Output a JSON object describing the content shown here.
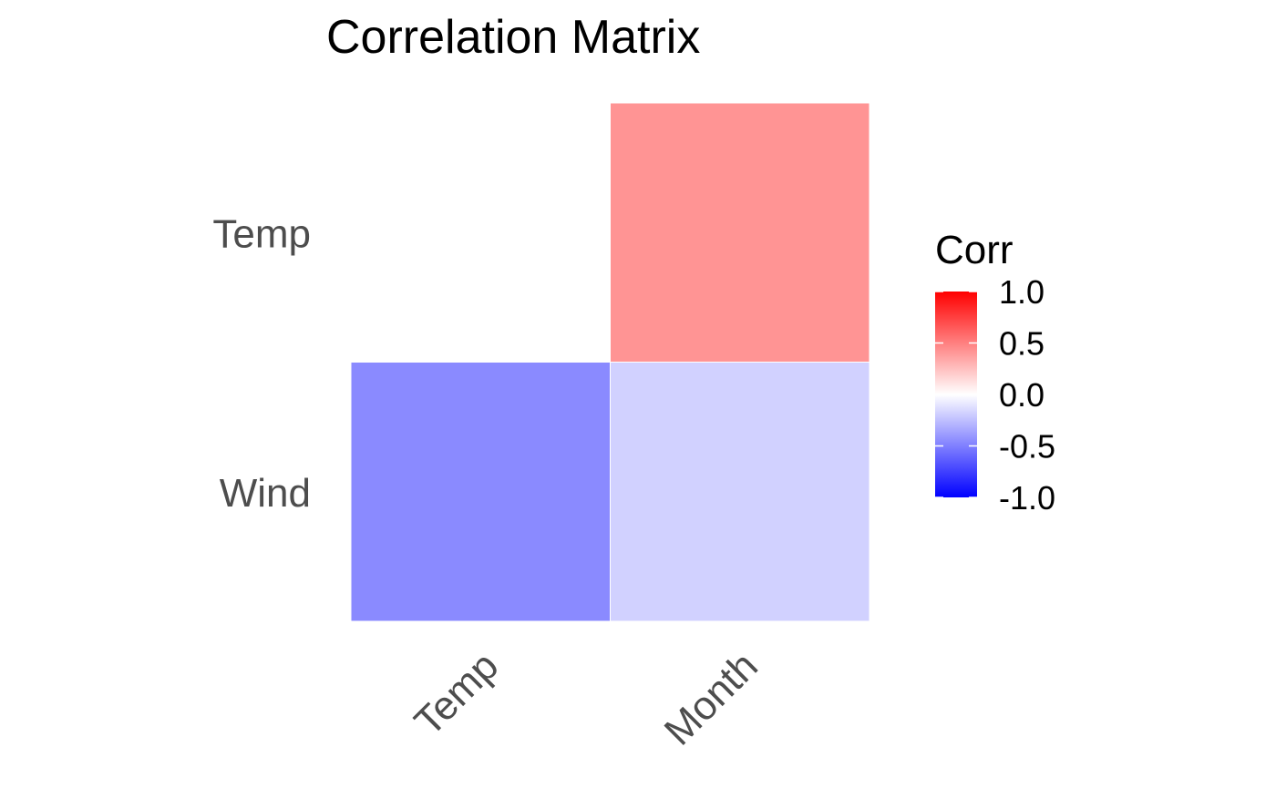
{
  "chart_data": {
    "type": "heatmap",
    "title": "Correlation Matrix",
    "x_categories": [
      "Temp",
      "Month"
    ],
    "y_categories": [
      "Temp",
      "Wind"
    ],
    "cells": [
      {
        "x": "Month",
        "y": "Temp",
        "value": 0.42
      },
      {
        "x": "Temp",
        "y": "Wind",
        "value": -0.46
      },
      {
        "x": "Month",
        "y": "Wind",
        "value": -0.18
      }
    ],
    "legend": {
      "title": "Corr",
      "ticks": [
        "1.0",
        "0.5",
        "0.0",
        "-0.5",
        "-1.0"
      ],
      "tick_values": [
        1.0,
        0.5,
        0.0,
        -0.5,
        -1.0
      ],
      "range": [
        -1,
        1
      ],
      "placement": "right"
    },
    "colors": {
      "low": "#0000ff",
      "mid": "#ffffff",
      "high": "#ff0000"
    },
    "grid": false
  }
}
